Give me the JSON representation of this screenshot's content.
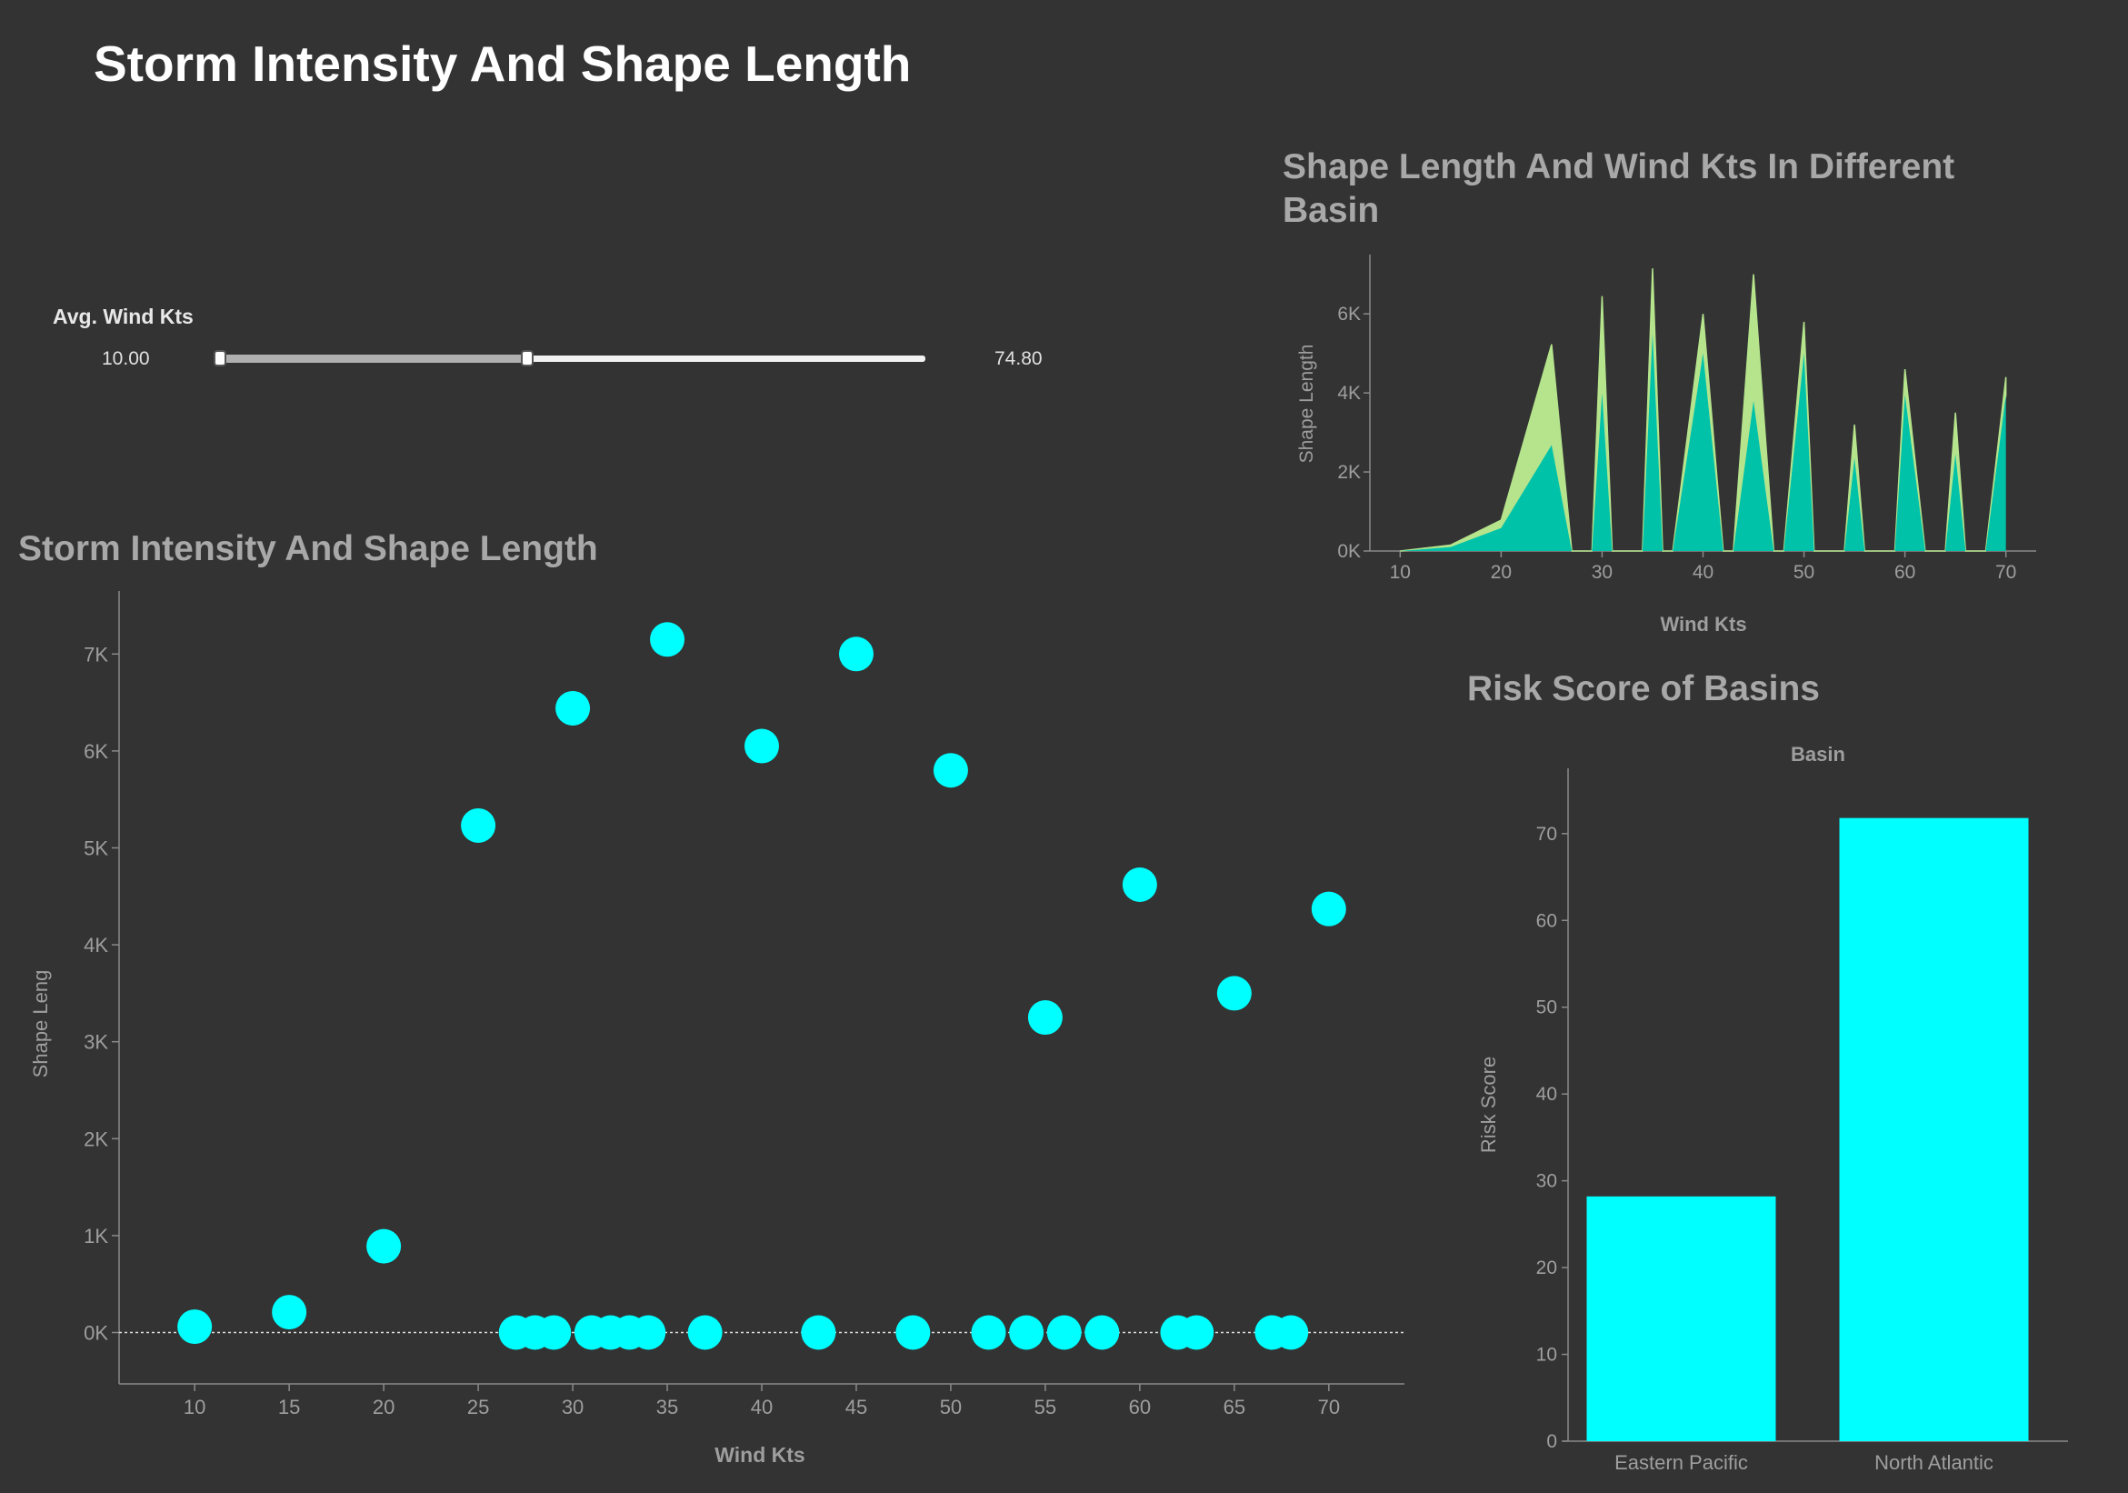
{
  "dashboard": {
    "title": "Storm Intensity And Shape Length"
  },
  "filter": {
    "label": "Avg. Wind Kts",
    "min_label": "10.00",
    "max_label": "74.80",
    "range_min": 10,
    "range_max": 74.8,
    "selected_max": 38
  },
  "colors": {
    "background": "#333333",
    "scatter_point": "#00ffff",
    "area_teal": "#00c2a8",
    "area_lightgreen": "#b5e48c",
    "bar": "#00ffff",
    "axis_text": "#9e9e9e"
  },
  "chart_data": [
    {
      "type": "scatter",
      "title": "Storm Intensity And Shape Length",
      "xlabel": "Wind Kts",
      "ylabel": "Shape Leng",
      "xlim": [
        6,
        74
      ],
      "ylim": [
        -530,
        7650
      ],
      "xticks": [
        10,
        15,
        20,
        25,
        30,
        35,
        40,
        45,
        50,
        55,
        60,
        65,
        70
      ],
      "yticks": [
        0,
        1000,
        2000,
        3000,
        4000,
        5000,
        6000,
        7000
      ],
      "ytick_labels": [
        "0K",
        "1K",
        "2K",
        "3K",
        "4K",
        "5K",
        "6K",
        "7K"
      ],
      "reference_line": 0,
      "points": [
        {
          "x": 10,
          "y": 60
        },
        {
          "x": 15,
          "y": 210
        },
        {
          "x": 20,
          "y": 890
        },
        {
          "x": 25,
          "y": 5230
        },
        {
          "x": 30,
          "y": 6440
        },
        {
          "x": 35,
          "y": 7150
        },
        {
          "x": 40,
          "y": 6050
        },
        {
          "x": 45,
          "y": 7000
        },
        {
          "x": 50,
          "y": 5800
        },
        {
          "x": 55,
          "y": 3250
        },
        {
          "x": 60,
          "y": 4620
        },
        {
          "x": 65,
          "y": 3500
        },
        {
          "x": 70,
          "y": 4370
        },
        {
          "x": 27,
          "y": 0
        },
        {
          "x": 28,
          "y": 0
        },
        {
          "x": 29,
          "y": 0
        },
        {
          "x": 31,
          "y": 0
        },
        {
          "x": 32,
          "y": 0
        },
        {
          "x": 33,
          "y": 0
        },
        {
          "x": 34,
          "y": 0
        },
        {
          "x": 37,
          "y": 0
        },
        {
          "x": 43,
          "y": 0
        },
        {
          "x": 48,
          "y": 0
        },
        {
          "x": 52,
          "y": 0
        },
        {
          "x": 54,
          "y": 0
        },
        {
          "x": 56,
          "y": 0
        },
        {
          "x": 58,
          "y": 0
        },
        {
          "x": 62,
          "y": 0
        },
        {
          "x": 63,
          "y": 0
        },
        {
          "x": 67,
          "y": 0
        },
        {
          "x": 68,
          "y": 0
        }
      ]
    },
    {
      "type": "area",
      "title": "Shape Length And Wind Kts In Different Basin",
      "xlabel": "Wind Kts",
      "ylabel": "Shape Length",
      "xlim": [
        7,
        73
      ],
      "ylim": [
        0,
        7500
      ],
      "xticks": [
        10,
        20,
        30,
        40,
        50,
        60,
        70
      ],
      "yticks": [
        0,
        2000,
        4000,
        6000
      ],
      "ytick_labels": [
        "0K",
        "2K",
        "4K",
        "6K"
      ],
      "stacked": true,
      "series": [
        {
          "color": "#00c2a8",
          "points": [
            [
              10,
              0
            ],
            [
              15,
              100
            ],
            [
              20,
              580
            ],
            [
              25,
              2680
            ],
            [
              27,
              0
            ],
            [
              29,
              0
            ],
            [
              30,
              4000
            ],
            [
              31,
              0
            ],
            [
              34,
              0
            ],
            [
              35,
              5500
            ],
            [
              36,
              0
            ],
            [
              37,
              0
            ],
            [
              40,
              5000
            ],
            [
              42,
              0
            ],
            [
              43,
              0
            ],
            [
              45,
              3800
            ],
            [
              47,
              0
            ],
            [
              48,
              0
            ],
            [
              50,
              5000
            ],
            [
              51,
              0
            ],
            [
              54,
              0
            ],
            [
              55,
              2350
            ],
            [
              56,
              0
            ],
            [
              59,
              0
            ],
            [
              60,
              3950
            ],
            [
              62,
              0
            ],
            [
              64,
              0
            ],
            [
              65,
              2450
            ],
            [
              66,
              0
            ],
            [
              67,
              0
            ],
            [
              68,
              0
            ],
            [
              70,
              3950
            ]
          ]
        },
        {
          "color": "#b5e48c",
          "points": [
            [
              10,
              0
            ],
            [
              15,
              50
            ],
            [
              20,
              200
            ],
            [
              25,
              2550
            ],
            [
              27,
              0
            ],
            [
              29,
              0
            ],
            [
              30,
              2450
            ],
            [
              31,
              0
            ],
            [
              34,
              0
            ],
            [
              35,
              1650
            ],
            [
              36,
              0
            ],
            [
              37,
              0
            ],
            [
              40,
              1000
            ],
            [
              42,
              0
            ],
            [
              43,
              0
            ],
            [
              45,
              3200
            ],
            [
              47,
              0
            ],
            [
              48,
              0
            ],
            [
              50,
              800
            ],
            [
              51,
              0
            ],
            [
              54,
              0
            ],
            [
              55,
              850
            ],
            [
              56,
              0
            ],
            [
              59,
              0
            ],
            [
              60,
              650
            ],
            [
              62,
              0
            ],
            [
              64,
              0
            ],
            [
              65,
              1050
            ],
            [
              66,
              0
            ],
            [
              67,
              0
            ],
            [
              68,
              0
            ],
            [
              70,
              450
            ]
          ]
        }
      ]
    },
    {
      "type": "bar",
      "title": "Risk Score of Basins",
      "header": "Basin",
      "ylabel": "Risk Score",
      "categories": [
        "Eastern Pacific",
        "North Atlantic"
      ],
      "values": [
        28.2,
        71.8
      ],
      "ylim": [
        0,
        77
      ],
      "yticks": [
        0,
        10,
        20,
        30,
        40,
        50,
        60,
        70
      ]
    }
  ]
}
